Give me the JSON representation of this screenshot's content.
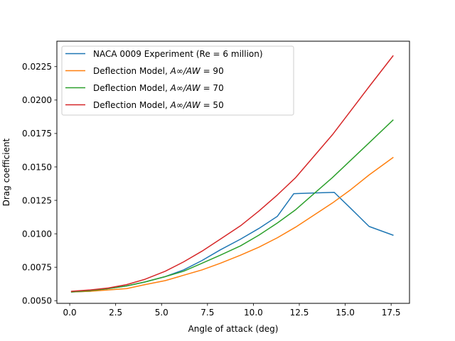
{
  "chart_data": {
    "type": "line",
    "xlabel": "Angle of attack (deg)",
    "ylabel": "Drag coefficient",
    "xlim": [
      -0.7,
      18.5
    ],
    "ylim": [
      0.0048,
      0.0244
    ],
    "xticks": [
      0.0,
      2.5,
      5.0,
      7.5,
      10.0,
      12.5,
      15.0,
      17.5
    ],
    "xtick_labels": [
      "0.0",
      "2.5",
      "5.0",
      "7.5",
      "10.0",
      "12.5",
      "15.0",
      "17.5"
    ],
    "yticks": [
      0.005,
      0.0075,
      0.01,
      0.0125,
      0.015,
      0.0175,
      0.02,
      0.0225
    ],
    "ytick_labels": [
      "0.0050",
      "0.0075",
      "0.0100",
      "0.0125",
      "0.0150",
      "0.0175",
      "0.0200",
      "0.0225"
    ],
    "grid": false,
    "legend_position": "top-left",
    "series": [
      {
        "name_prefix": "NACA 0009 Experiment (Re = 6 million)",
        "name_math": "",
        "name_suffix": "",
        "color": "#1f77b4",
        "x": [
          0.1,
          1.1,
          2.1,
          3.1,
          4.1,
          5.2,
          6.2,
          7.2,
          8.2,
          9.3,
          10.3,
          11.3,
          12.2,
          13.3,
          14.4,
          15.3,
          16.3,
          17.6
        ],
        "y": [
          0.00565,
          0.0057,
          0.0059,
          0.0061,
          0.0064,
          0.0068,
          0.0073,
          0.008,
          0.0088,
          0.0096,
          0.0104,
          0.0113,
          0.013,
          0.01305,
          0.0131,
          0.0119,
          0.01055,
          0.0099
        ]
      },
      {
        "name_prefix": "Deflection Model, ",
        "name_math": "A∞/AW",
        "name_suffix": " = 90",
        "color": "#ff7f0e",
        "x": [
          0.1,
          1.1,
          2.1,
          3.1,
          4.1,
          5.2,
          6.2,
          7.2,
          8.2,
          9.3,
          10.3,
          11.3,
          12.3,
          13.3,
          14.3,
          15.3,
          16.3,
          17.6
        ],
        "y": [
          0.00565,
          0.0057,
          0.0058,
          0.0059,
          0.0062,
          0.0065,
          0.0069,
          0.0073,
          0.0078,
          0.0084,
          0.009,
          0.0097,
          0.0105,
          0.0114,
          0.0123,
          0.0133,
          0.0144,
          0.0157
        ]
      },
      {
        "name_prefix": "Deflection Model, ",
        "name_math": "A∞/AW",
        "name_suffix": " = 70",
        "color": "#2ca02c",
        "x": [
          0.1,
          1.1,
          2.1,
          3.1,
          4.1,
          5.2,
          6.2,
          7.2,
          8.2,
          9.3,
          10.3,
          11.3,
          12.3,
          13.3,
          14.3,
          15.3,
          16.3,
          17.6
        ],
        "y": [
          0.00565,
          0.00575,
          0.0059,
          0.0061,
          0.0064,
          0.0068,
          0.0072,
          0.0078,
          0.0084,
          0.0091,
          0.0099,
          0.0108,
          0.0118,
          0.013,
          0.0142,
          0.0155,
          0.0168,
          0.0185
        ]
      },
      {
        "name_prefix": "Deflection Model, ",
        "name_math": "A∞/AW",
        "name_suffix": " = 50",
        "color": "#d62728",
        "x": [
          0.1,
          1.1,
          2.1,
          3.1,
          4.1,
          5.2,
          6.2,
          7.2,
          8.2,
          9.3,
          10.3,
          11.3,
          12.3,
          13.3,
          14.3,
          15.3,
          16.3,
          17.6
        ],
        "y": [
          0.0057,
          0.0058,
          0.00595,
          0.0062,
          0.0066,
          0.0072,
          0.0079,
          0.0087,
          0.0096,
          0.0106,
          0.0117,
          0.0129,
          0.0142,
          0.0158,
          0.0174,
          0.0192,
          0.021,
          0.0233
        ]
      }
    ]
  }
}
